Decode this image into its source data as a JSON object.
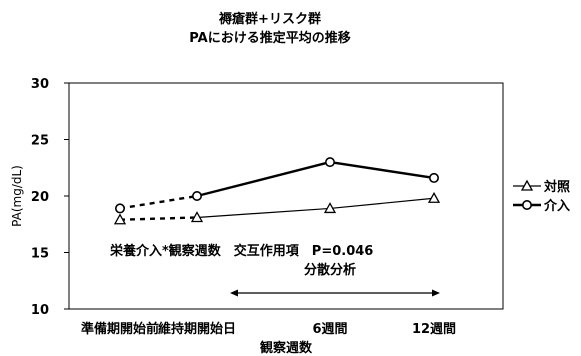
{
  "chart_data": {
    "type": "line",
    "title": "褥瘡群+リスク群",
    "subtitle": "PAにおける推定平均の推移",
    "xlabel": "観察週数",
    "ylabel": "PA(mg/dL)",
    "ylim": [
      10,
      30
    ],
    "yticks": [
      "10",
      "15",
      "20",
      "25",
      "30"
    ],
    "categories": [
      "準備期開始前",
      "維持期開始日",
      "6週間",
      "12週間"
    ],
    "legend_position": "right",
    "series": [
      {
        "name": "対照",
        "marker": "triangle",
        "values": [
          17.9,
          18.1,
          18.9,
          19.8
        ]
      },
      {
        "name": "介入",
        "marker": "circle",
        "values": [
          18.9,
          20.0,
          23.0,
          21.6
        ]
      }
    ],
    "dashed_segment_between_categories": [
      0,
      1
    ],
    "annotation": "栄養介入*観察週数　交互作用項　P=0.046",
    "range_label": "分散分析",
    "range_categories": [
      1,
      3
    ]
  }
}
